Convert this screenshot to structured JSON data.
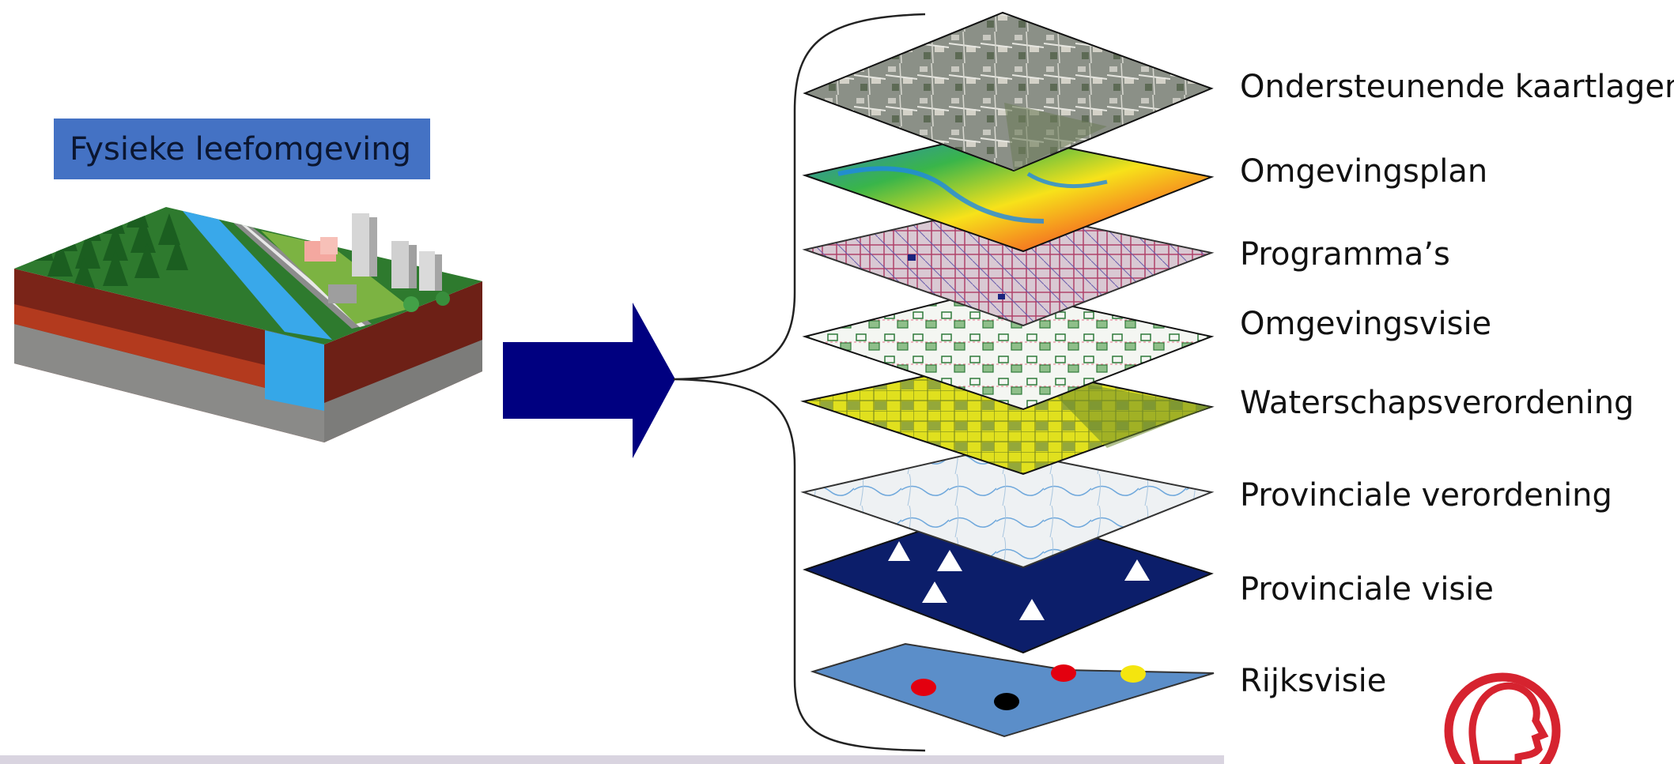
{
  "title_box": {
    "label": "Fysieke leefomgeving"
  },
  "layers": [
    {
      "label": "Ondersteunende kaartlagen",
      "texture": "aerial-photo"
    },
    {
      "label": "Omgevingsplan",
      "texture": "elevation-map"
    },
    {
      "label": "Programma’s",
      "texture": "road-network"
    },
    {
      "label": "Omgevingsvisie",
      "texture": "parcel-map"
    },
    {
      "label": "Waterschapsverordening",
      "texture": "yellow-zoning"
    },
    {
      "label": "Provinciale verordening",
      "texture": "hydrology-map"
    },
    {
      "label": "Provinciale visie",
      "texture": "navy-triangles"
    },
    {
      "label": "Rijksvisie",
      "texture": "blue-dots"
    }
  ],
  "colors": {
    "title_box_bg": "#4472c4",
    "arrow": "#000080",
    "logo": "#d6232f",
    "bottom_bar": "#d9d4e0"
  },
  "icons": [
    "terrain-illustration",
    "right-arrow-icon",
    "curly-brace",
    "head-profile-logo"
  ]
}
